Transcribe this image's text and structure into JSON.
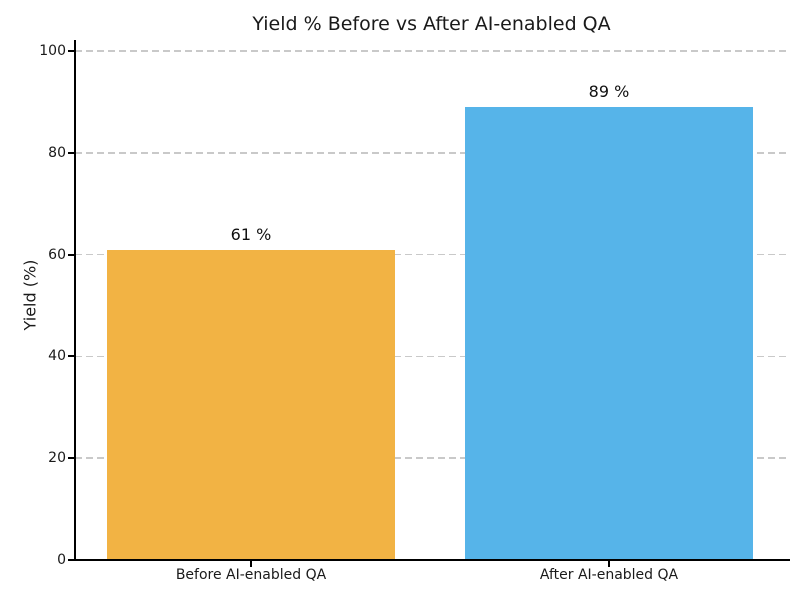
{
  "chart_data": {
    "type": "bar",
    "title": "Yield % Before vs After AI-enabled QA",
    "ylabel": "Yield (%)",
    "categories": [
      "Before AI-enabled QA",
      "After AI-enabled QA"
    ],
    "values": [
      61,
      89
    ],
    "bar_labels": [
      "61 %",
      "89 %"
    ],
    "bar_colors": [
      "#F2B344",
      "#56B4E9"
    ],
    "ylim": [
      0,
      100
    ],
    "yticks": [
      0,
      20,
      40,
      60,
      80,
      100
    ],
    "legend": "none",
    "grid": "horizontal-dashed",
    "grid_color": "#c9c9c9",
    "axis_color": "#000000",
    "text_color": "#1a1a1a"
  }
}
